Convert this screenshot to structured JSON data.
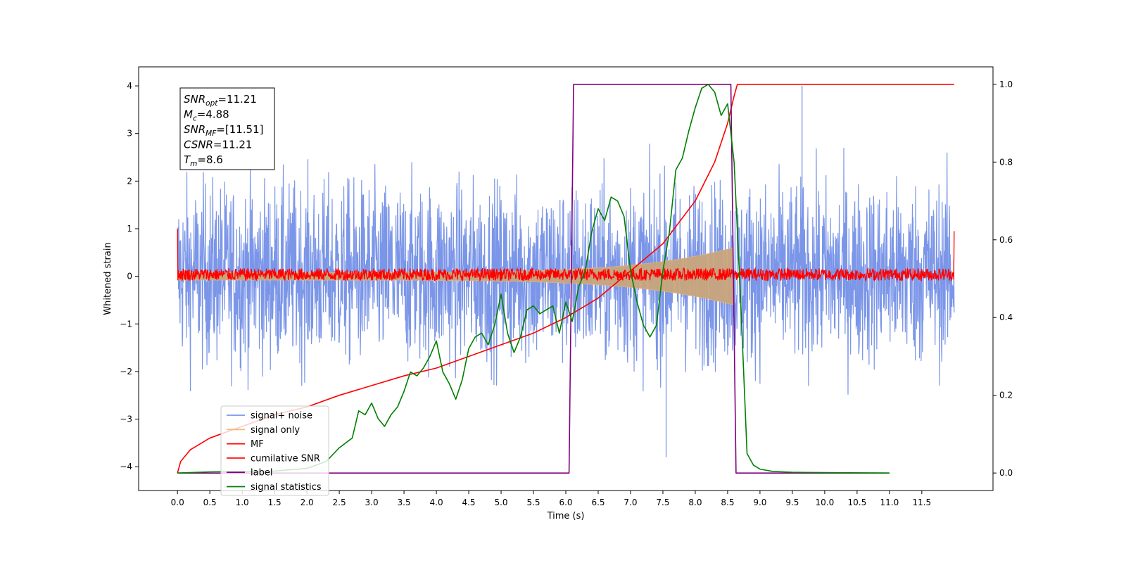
{
  "chart_data": {
    "type": "line",
    "xlabel": "Time (s)",
    "ylabel_left": "Whitened strain",
    "ylabel_right": "",
    "xlim": [
      -0.6,
      12.6
    ],
    "ylim_left": [
      -4.5,
      4.4
    ],
    "ylim_right": [
      -0.045,
      1.045
    ],
    "x_ticks": [
      "0.0",
      "0.5",
      "1.0",
      "1.5",
      "2.0",
      "2.5",
      "3.0",
      "3.5",
      "4.0",
      "4.5",
      "5.0",
      "5.5",
      "6.0",
      "6.5",
      "7.0",
      "7.5",
      "8.0",
      "8.5",
      "9.0",
      "9.5",
      "10.0",
      "10.5",
      "11.0",
      "11.5"
    ],
    "y_ticks_left": [
      "4",
      "3",
      "2",
      "1",
      "0",
      "−1",
      "−2",
      "−3",
      "−4"
    ],
    "y_ticks_right": [
      "1.0",
      "0.8",
      "0.6",
      "0.4",
      "0.2",
      "0.0"
    ],
    "grid": false,
    "legend_position": "lower-left",
    "annotation_box": {
      "lines": [
        {
          "main": "SNR",
          "sub": "opt",
          "value": "=11.21"
        },
        {
          "main": "M",
          "sub": "c",
          "value": "=4.88"
        },
        {
          "main": "SNR",
          "sub": "MF",
          "value": "=[11.51]"
        },
        {
          "main": "CSNR",
          "sub": "",
          "value": "=11.21"
        },
        {
          "main": "T",
          "sub": "m",
          "value": "=8.6"
        }
      ]
    },
    "series": [
      {
        "name": "signal+ noise",
        "axis": "left",
        "color": "#7b96e8",
        "kind": "noise_band",
        "x_range": [
          0.0,
          12.0
        ],
        "envelope": [
          -2.7,
          2.6
        ],
        "max_value": 4.0,
        "min_value": -3.8
      },
      {
        "name": "signal only",
        "axis": "left",
        "color": "#f5b87a",
        "kind": "chirp",
        "x_range": [
          0.0,
          8.58
        ],
        "end_amplitude": 0.6
      },
      {
        "name": "MF",
        "axis": "left",
        "color": "#ff0000",
        "kind": "noise_band",
        "x_range": [
          0.0,
          12.0
        ],
        "envelope": [
          -0.1,
          0.2
        ],
        "start_value": 1.0,
        "end_value": 0.95
      },
      {
        "name": "cumilative SNR",
        "axis": "right",
        "color": "#ff0000",
        "kind": "line",
        "x": [
          0.0,
          0.05,
          0.2,
          0.5,
          1.0,
          1.5,
          2.0,
          2.5,
          3.0,
          3.5,
          4.0,
          4.5,
          5.0,
          5.5,
          6.0,
          6.5,
          7.0,
          7.5,
          8.0,
          8.3,
          8.5,
          8.6,
          8.65,
          12.0
        ],
        "y": [
          0.0,
          0.03,
          0.06,
          0.09,
          0.12,
          0.15,
          0.17,
          0.2,
          0.225,
          0.25,
          0.27,
          0.3,
          0.33,
          0.36,
          0.4,
          0.45,
          0.52,
          0.59,
          0.7,
          0.8,
          0.9,
          0.97,
          1.0,
          1.0
        ]
      },
      {
        "name": "label",
        "axis": "right",
        "color": "#800080",
        "kind": "line",
        "x": [
          0.0,
          6.05,
          6.12,
          8.55,
          8.63,
          11.0
        ],
        "y": [
          0.0,
          0.0,
          1.0,
          1.0,
          0.0,
          0.0
        ]
      },
      {
        "name": "signal statistics",
        "axis": "right",
        "color": "#008000",
        "kind": "line",
        "x": [
          0.0,
          0.5,
          1.0,
          1.5,
          2.0,
          2.3,
          2.5,
          2.7,
          2.8,
          2.9,
          3.0,
          3.1,
          3.2,
          3.3,
          3.4,
          3.5,
          3.6,
          3.7,
          3.8,
          3.9,
          4.0,
          4.1,
          4.2,
          4.3,
          4.4,
          4.5,
          4.6,
          4.7,
          4.8,
          4.9,
          5.0,
          5.1,
          5.2,
          5.3,
          5.4,
          5.5,
          5.6,
          5.7,
          5.8,
          5.9,
          6.0,
          6.1,
          6.2,
          6.3,
          6.4,
          6.5,
          6.6,
          6.7,
          6.8,
          6.9,
          7.0,
          7.1,
          7.2,
          7.3,
          7.4,
          7.5,
          7.6,
          7.7,
          7.8,
          7.9,
          8.0,
          8.1,
          8.2,
          8.3,
          8.4,
          8.5,
          8.6,
          8.7,
          8.8,
          8.9,
          9.0,
          9.2,
          9.5,
          10.0,
          11.0
        ],
        "y": [
          0.0,
          0.003,
          0.004,
          0.005,
          0.012,
          0.03,
          0.065,
          0.09,
          0.16,
          0.15,
          0.18,
          0.14,
          0.12,
          0.15,
          0.17,
          0.21,
          0.26,
          0.25,
          0.27,
          0.3,
          0.34,
          0.26,
          0.23,
          0.19,
          0.24,
          0.32,
          0.35,
          0.36,
          0.33,
          0.38,
          0.46,
          0.36,
          0.31,
          0.35,
          0.42,
          0.43,
          0.41,
          0.42,
          0.43,
          0.36,
          0.44,
          0.39,
          0.48,
          0.52,
          0.62,
          0.68,
          0.65,
          0.71,
          0.7,
          0.66,
          0.52,
          0.44,
          0.38,
          0.35,
          0.38,
          0.52,
          0.62,
          0.78,
          0.81,
          0.88,
          0.94,
          0.99,
          1.0,
          0.98,
          0.92,
          0.95,
          0.8,
          0.45,
          0.05,
          0.02,
          0.01,
          0.004,
          0.002,
          0.001,
          0.0
        ]
      }
    ]
  }
}
